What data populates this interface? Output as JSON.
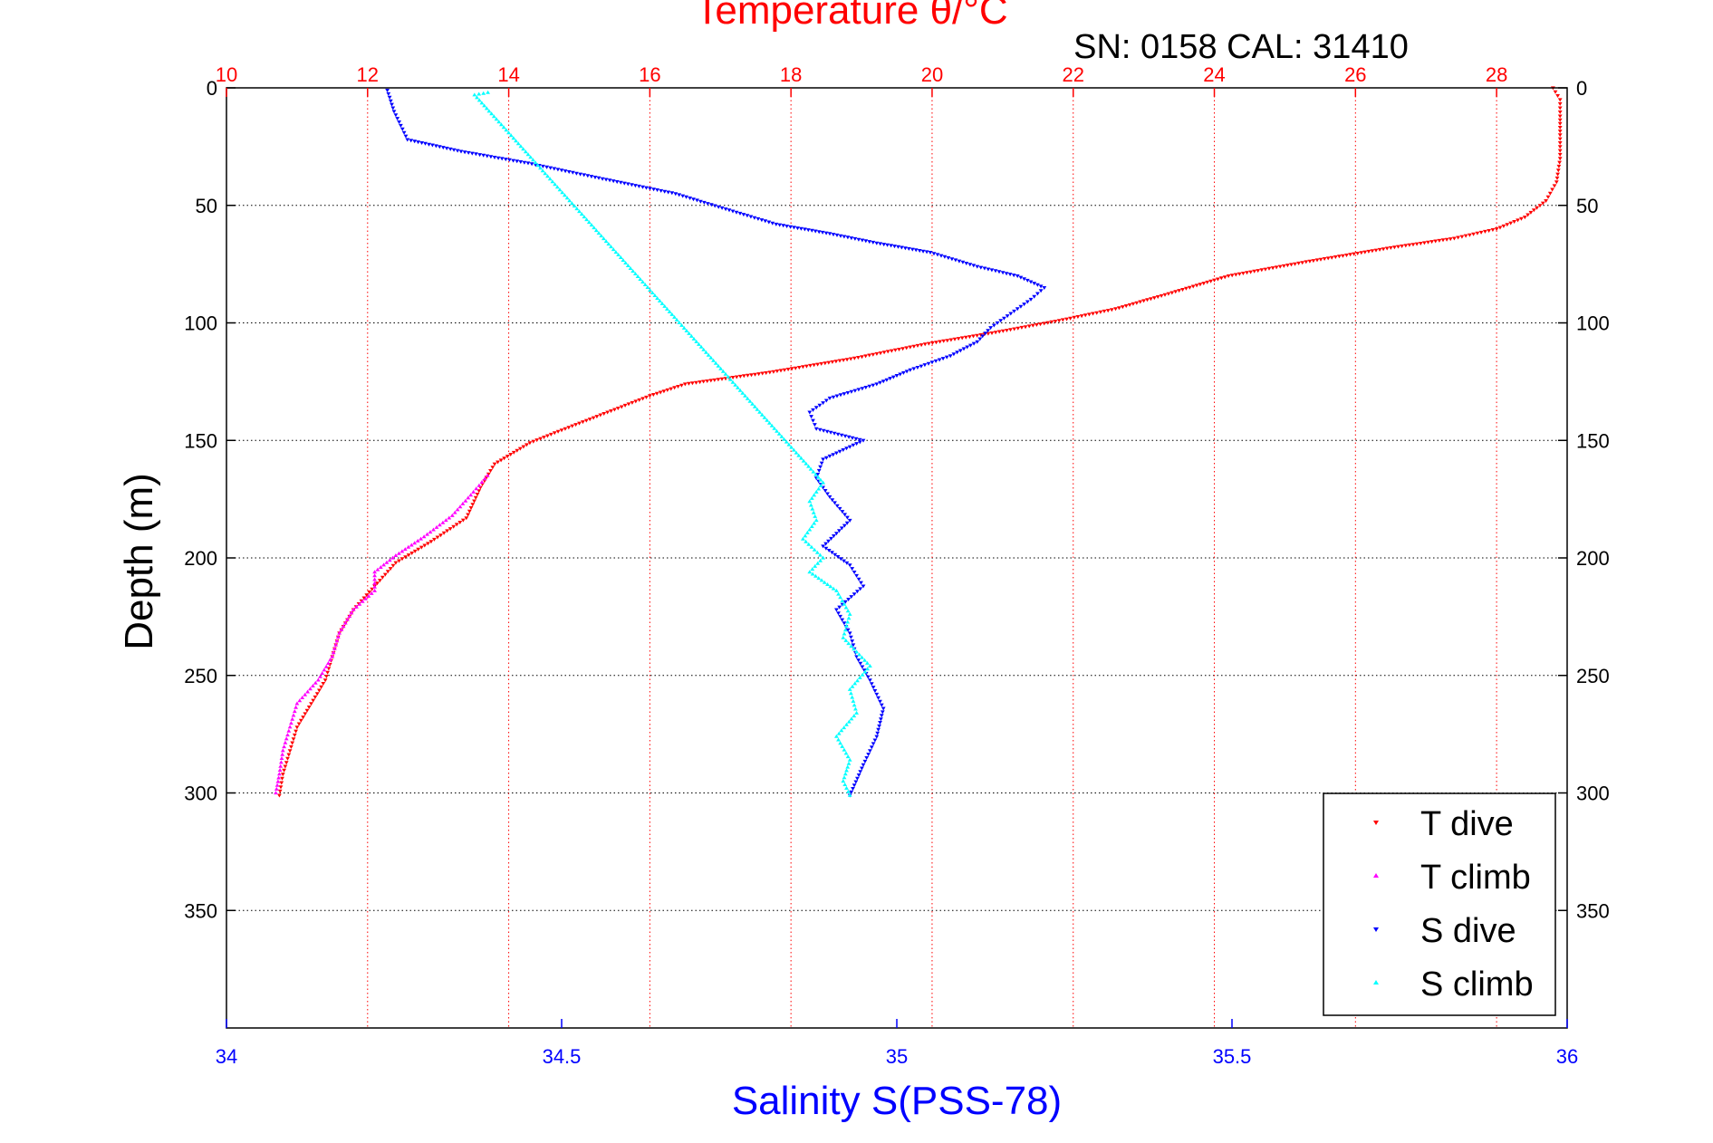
{
  "chart_data": {
    "type": "scatter",
    "title": "Temperature θ/°C",
    "subtitle": "SN: 0158  CAL: 31410",
    "ylabel": "Depth (m)",
    "xlabel": "Salinity S(PSS-78)",
    "y_range": [
      0,
      400
    ],
    "y_reversed": true,
    "y_ticks": [
      0,
      50,
      100,
      150,
      200,
      250,
      300,
      350
    ],
    "temperature_axis": {
      "position": "top",
      "range": [
        10,
        29
      ],
      "ticks": [
        10,
        12,
        14,
        16,
        18,
        20,
        22,
        24,
        26,
        28
      ],
      "color": "#ff0000"
    },
    "salinity_axis": {
      "position": "bottom",
      "range": [
        34,
        36
      ],
      "ticks": [
        34,
        34.5,
        35,
        35.5,
        36
      ],
      "color": "#0000ff"
    },
    "grid": true,
    "legend_position": "bottom-right",
    "series": [
      {
        "name": "T dive",
        "axis": "temperature",
        "color": "#ff0000",
        "points": [
          [
            28.8,
            0
          ],
          [
            28.9,
            5
          ],
          [
            28.9,
            12
          ],
          [
            28.9,
            20
          ],
          [
            28.9,
            30
          ],
          [
            28.85,
            40
          ],
          [
            28.7,
            48
          ],
          [
            28.4,
            55
          ],
          [
            28.0,
            60
          ],
          [
            27.4,
            64
          ],
          [
            26.5,
            68
          ],
          [
            25.3,
            74
          ],
          [
            24.2,
            80
          ],
          [
            23.3,
            88
          ],
          [
            22.6,
            94
          ],
          [
            21.8,
            99
          ],
          [
            20.9,
            104
          ],
          [
            19.9,
            109
          ],
          [
            18.9,
            115
          ],
          [
            17.7,
            121
          ],
          [
            16.5,
            126
          ],
          [
            16.0,
            131
          ],
          [
            15.4,
            138
          ],
          [
            14.8,
            145
          ],
          [
            14.3,
            151
          ],
          [
            13.8,
            160
          ],
          [
            13.6,
            170
          ],
          [
            13.4,
            183
          ],
          [
            12.9,
            193
          ],
          [
            12.4,
            202
          ],
          [
            12.1,
            212
          ],
          [
            11.8,
            222
          ],
          [
            11.6,
            232
          ],
          [
            11.5,
            242
          ],
          [
            11.4,
            252
          ],
          [
            11.2,
            262
          ],
          [
            11.0,
            272
          ],
          [
            10.9,
            282
          ],
          [
            10.8,
            292
          ],
          [
            10.75,
            301
          ]
        ]
      },
      {
        "name": "T climb",
        "axis": "temperature",
        "color": "#ff00ff",
        "points": [
          [
            13.7,
            165
          ],
          [
            13.5,
            172
          ],
          [
            13.2,
            182
          ],
          [
            12.8,
            191
          ],
          [
            12.4,
            199
          ],
          [
            12.1,
            206
          ],
          [
            12.1,
            214
          ],
          [
            11.8,
            222
          ],
          [
            11.6,
            232
          ],
          [
            11.5,
            242
          ],
          [
            11.3,
            252
          ],
          [
            11.0,
            262
          ],
          [
            10.9,
            272
          ],
          [
            10.8,
            282
          ],
          [
            10.75,
            292
          ],
          [
            10.7,
            300
          ]
        ]
      },
      {
        "name": "S dive",
        "axis": "salinity",
        "color": "#0000ff",
        "points": [
          [
            34.24,
            1
          ],
          [
            34.25,
            10
          ],
          [
            34.27,
            22
          ],
          [
            34.35,
            27
          ],
          [
            34.45,
            32
          ],
          [
            34.55,
            38
          ],
          [
            34.67,
            45
          ],
          [
            34.75,
            52
          ],
          [
            34.82,
            58
          ],
          [
            34.9,
            62
          ],
          [
            34.97,
            66
          ],
          [
            35.05,
            70
          ],
          [
            35.12,
            76
          ],
          [
            35.18,
            80
          ],
          [
            35.22,
            85
          ],
          [
            35.2,
            90
          ],
          [
            35.17,
            96
          ],
          [
            35.14,
            102
          ],
          [
            35.12,
            108
          ],
          [
            35.08,
            114
          ],
          [
            35.02,
            120
          ],
          [
            34.97,
            126
          ],
          [
            34.9,
            132
          ],
          [
            34.87,
            138
          ],
          [
            34.88,
            145
          ],
          [
            34.95,
            150
          ],
          [
            34.89,
            158
          ],
          [
            34.88,
            166
          ],
          [
            34.9,
            174
          ],
          [
            34.93,
            184
          ],
          [
            34.89,
            195
          ],
          [
            34.93,
            203
          ],
          [
            34.95,
            212
          ],
          [
            34.91,
            222
          ],
          [
            34.93,
            232
          ],
          [
            34.94,
            242
          ],
          [
            34.96,
            252
          ],
          [
            34.98,
            264
          ],
          [
            34.97,
            276
          ],
          [
            34.95,
            288
          ],
          [
            34.93,
            301
          ]
        ]
      },
      {
        "name": "S climb",
        "axis": "salinity",
        "color": "#00ffff",
        "points": [
          [
            34.39,
            2
          ],
          [
            34.37,
            3
          ],
          [
            34.89,
            168
          ],
          [
            34.87,
            176
          ],
          [
            34.88,
            184
          ],
          [
            34.86,
            192
          ],
          [
            34.89,
            200
          ],
          [
            34.87,
            206
          ],
          [
            34.91,
            214
          ],
          [
            34.93,
            224
          ],
          [
            34.92,
            234
          ],
          [
            34.96,
            246
          ],
          [
            34.93,
            256
          ],
          [
            34.94,
            266
          ],
          [
            34.91,
            276
          ],
          [
            34.93,
            286
          ],
          [
            34.92,
            295
          ],
          [
            34.93,
            301
          ]
        ]
      }
    ]
  },
  "legend": {
    "items": [
      "T dive",
      "T climb",
      "S dive",
      "S climb"
    ]
  }
}
